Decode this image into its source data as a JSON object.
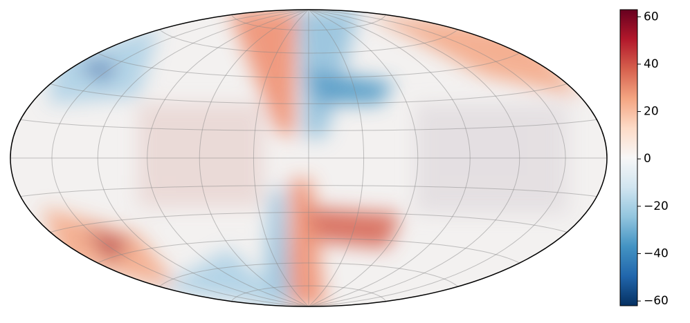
{
  "chart_data": {
    "type": "sky-map",
    "projection": "hammer",
    "colorbar": {
      "lim": [
        -62,
        63
      ],
      "ticks": [
        {
          "value": -60,
          "label": "−60"
        },
        {
          "value": -40,
          "label": "−40"
        },
        {
          "value": -20,
          "label": "−20"
        },
        0,
        20,
        40,
        60
      ],
      "colormap": [
        "#053061",
        "#2166ac",
        "#4393c3",
        "#92c5de",
        "#d1e5f0",
        "#f7f7f7",
        "#fddbc7",
        "#f4a582",
        "#d6604d",
        "#b2182b",
        "#67001f"
      ]
    }
  }
}
